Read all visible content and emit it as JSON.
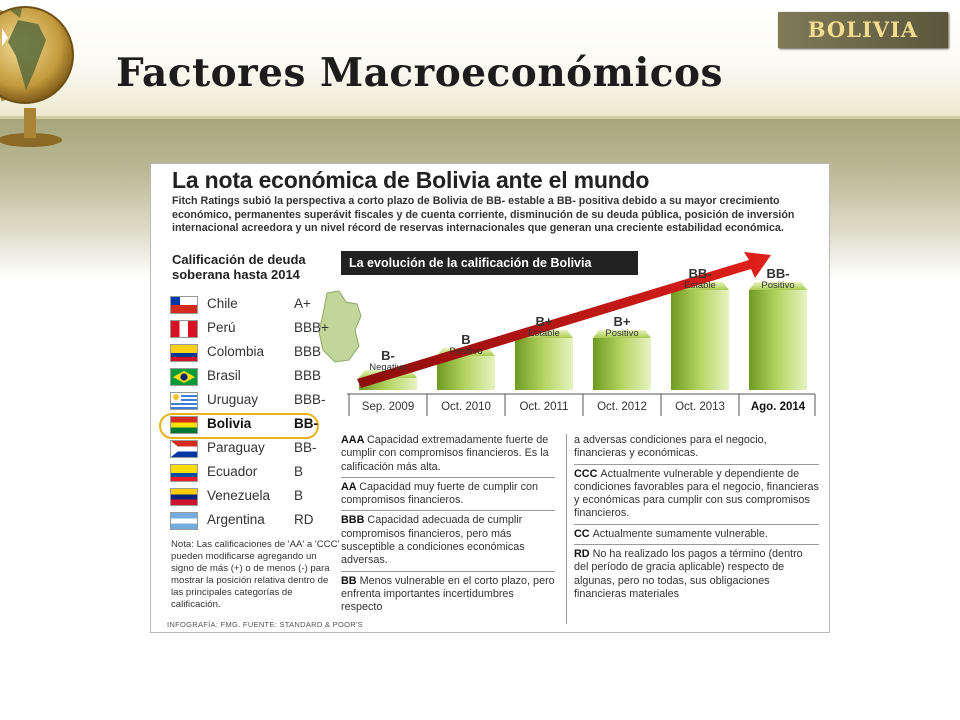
{
  "slide": {
    "badge": "BOLIVIA",
    "title": "Factores Macroeconómicos"
  },
  "infographic": {
    "title": "La nota económica de Bolivia ante el mundo",
    "intro": "Fitch Ratings subió la perspectiva a corto plazo de Bolivia de BB- estable a BB- positiva debido a su mayor crecimiento económico, permanentes superávit fiscales y de cuenta corriente, disminución de su deuda pública, posición de inversión internacional acreedora y  un nivel récord de reservas internacionales que generan una creciente estabilidad económica.",
    "table_title": "Calificación de deuda soberana hasta 2014",
    "countries": [
      {
        "name": "Chile",
        "rating": "A+"
      },
      {
        "name": "Perú",
        "rating": "BBB+"
      },
      {
        "name": "Colombia",
        "rating": "BBB"
      },
      {
        "name": "Brasil",
        "rating": "BBB"
      },
      {
        "name": "Uruguay",
        "rating": "BBB-"
      },
      {
        "name": "Bolivia",
        "rating": "BB-"
      },
      {
        "name": "Paraguay",
        "rating": "BB-"
      },
      {
        "name": "Ecuador",
        "rating": "B"
      },
      {
        "name": "Venezuela",
        "rating": "B"
      },
      {
        "name": "Argentina",
        "rating": "RD"
      }
    ],
    "highlighted_country": "Bolivia",
    "note": "Nota: Las calificaciones de 'AA' a 'CCC' pueden modificarse agregando un signo de más (+) o de menos (-) para mostrar la posición relativa dentro de las principales categorías de calificación.",
    "credit": "INFOGRAFÍA: FMG. FUENTE: STANDARD & POOR'S",
    "evolution_title": "La evolución de la calificación de Bolivia",
    "evolution": [
      {
        "year": "Sep. 2009",
        "rating": "B-",
        "outlook": "Negativo",
        "level": 1
      },
      {
        "year": "Oct. 2010",
        "rating": "B",
        "outlook": "Positivo",
        "level": 2
      },
      {
        "year": "Oct. 2011",
        "rating": "B+",
        "outlook": "Estable",
        "level": 3
      },
      {
        "year": "Oct. 2012",
        "rating": "B+",
        "outlook": "Positivo",
        "level": 3
      },
      {
        "year": "Oct. 2013",
        "rating": "BB-",
        "outlook": "Estable",
        "level": 4
      },
      {
        "year": "Ago. 2014",
        "rating": "BB-",
        "outlook": "Positivo",
        "level": 4
      }
    ],
    "definitions_left": [
      {
        "code": "AAA",
        "text": "Capacidad extremadamente fuerte de cumplir con compromisos financieros. Es la calificación más alta."
      },
      {
        "code": "AA",
        "text": "Capacidad muy fuerte de cumplir con compromisos financieros."
      },
      {
        "code": "BBB",
        "text": "Capacidad adecuada de cumplir compromisos financieros, pero más susceptible a condiciones económicas adversas."
      },
      {
        "code": "BB",
        "text": "Menos vulnerable en el corto plazo, pero enfrenta importantes incertidumbres respecto"
      }
    ],
    "definitions_right_cont": "a adversas condiciones para el negocio, financieras y económicas.",
    "definitions_right": [
      {
        "code": "CCC",
        "text": "Actualmente vulnerable y dependiente de condiciones favorables para el negocio, financieras y económicas para cumplir con sus compromisos financieros."
      },
      {
        "code": "CC",
        "text": "Actualmente sumamente vulnerable."
      },
      {
        "code": "RD",
        "text": "No ha realizado los pagos a término (dentro del período de gracia aplicable) respecto de algunas, pero no todas, sus obligaciones financieras materiales"
      }
    ]
  }
}
